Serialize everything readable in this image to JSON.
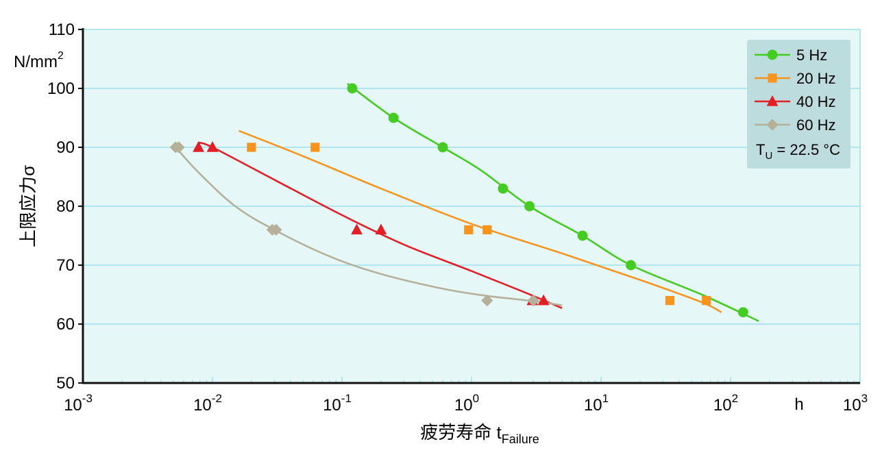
{
  "chart_data": {
    "type": "scatter",
    "title": "",
    "xlabel": {
      "main": "疲劳寿命 t",
      "sub": "Failure"
    },
    "x_unit": "h",
    "ylabel": "上限应力σ",
    "y_unit": {
      "base": "N/mm",
      "sup": "2"
    },
    "xscale": "log",
    "xlim": [
      0.001,
      1000
    ],
    "ylim": [
      50,
      110
    ],
    "yticks": [
      50,
      60,
      70,
      80,
      90,
      100,
      110
    ],
    "xticks": [
      {
        "value": 0.001,
        "base": "10",
        "exp": "-3"
      },
      {
        "value": 0.01,
        "base": "10",
        "exp": "-2"
      },
      {
        "value": 0.1,
        "base": "10",
        "exp": "-1"
      },
      {
        "value": 1,
        "base": "10",
        "exp": "0"
      },
      {
        "value": 10,
        "base": "10",
        "exp": "1"
      },
      {
        "value": 100,
        "base": "10",
        "exp": "2"
      },
      {
        "value": 1000,
        "base": "10",
        "exp": "3"
      }
    ],
    "grid": "horizontal",
    "background": "#e6f7f7",
    "gridline_color": "#aee8ee",
    "legend_position": "top-right",
    "legend_bg": "#bcdcde",
    "legend_note": {
      "base": "T",
      "sub": "U",
      "rest": " = 22.5 °C"
    },
    "series": [
      {
        "name": "5 Hz",
        "color": "#44cc22",
        "marker": "circle",
        "points": [
          [
            0.12,
            100
          ],
          [
            0.25,
            95
          ],
          [
            0.6,
            90
          ],
          [
            1.75,
            83
          ],
          [
            2.8,
            80
          ],
          [
            7.2,
            75
          ],
          [
            17,
            70
          ],
          [
            125,
            62
          ]
        ],
        "fit": [
          [
            0.11,
            100.8
          ],
          [
            0.25,
            95
          ],
          [
            0.6,
            90
          ],
          [
            1.2,
            86
          ],
          [
            2.8,
            80
          ],
          [
            7.2,
            75
          ],
          [
            17,
            70
          ],
          [
            60,
            65
          ],
          [
            165,
            60.5
          ]
        ]
      },
      {
        "name": "20 Hz",
        "color": "#f7941d",
        "marker": "square",
        "points": [
          [
            0.02,
            90
          ],
          [
            0.062,
            90
          ],
          [
            0.95,
            76
          ],
          [
            1.32,
            76
          ],
          [
            34,
            64
          ],
          [
            65,
            64
          ]
        ],
        "fit": [
          [
            0.016,
            92.8
          ],
          [
            0.05,
            88.5
          ],
          [
            0.2,
            83
          ],
          [
            1,
            77
          ],
          [
            5,
            72
          ],
          [
            20,
            67.5
          ],
          [
            60,
            63.7
          ],
          [
            85,
            62
          ]
        ]
      },
      {
        "name": "40 Hz",
        "color": "#e31e24",
        "marker": "triangle",
        "points": [
          [
            0.0078,
            90
          ],
          [
            0.01,
            90
          ],
          [
            0.13,
            76
          ],
          [
            0.2,
            76
          ],
          [
            2.95,
            64
          ],
          [
            3.6,
            64
          ]
        ],
        "fit": [
          [
            0.0078,
            90.8
          ],
          [
            0.01,
            90
          ],
          [
            0.03,
            84.5
          ],
          [
            0.1,
            78.5
          ],
          [
            0.3,
            73.5
          ],
          [
            1,
            69
          ],
          [
            2.5,
            65.5
          ],
          [
            5,
            62.7
          ]
        ]
      },
      {
        "name": "60 Hz",
        "color": "#b5b09a",
        "marker": "diamond",
        "points": [
          [
            0.0052,
            90
          ],
          [
            0.0055,
            90
          ],
          [
            0.029,
            76
          ],
          [
            0.031,
            76
          ],
          [
            1.32,
            64
          ],
          [
            3.0,
            64
          ]
        ],
        "fit": [
          [
            0.0052,
            90
          ],
          [
            0.008,
            85.5
          ],
          [
            0.015,
            80
          ],
          [
            0.03,
            76
          ],
          [
            0.08,
            71.5
          ],
          [
            0.2,
            68.5
          ],
          [
            0.6,
            66
          ],
          [
            1.3,
            64.8
          ],
          [
            3,
            63.9
          ],
          [
            5,
            63.2
          ]
        ]
      }
    ]
  }
}
